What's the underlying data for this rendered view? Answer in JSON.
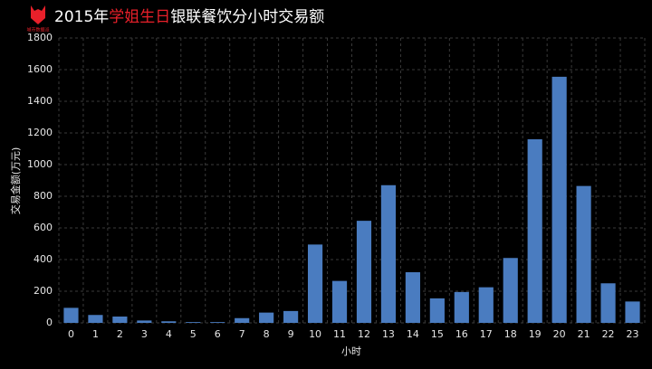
{
  "chart_data": {
    "type": "bar",
    "logo_text": "城市数据派",
    "title_parts": [
      "2015年",
      "学姐生日",
      "银联餐饮分小时交易额"
    ],
    "title_colors": [
      "#ffffff",
      "#e8202a",
      "#ffffff"
    ],
    "x_label": "小时",
    "y_label": "交易金额(万元)",
    "categories": [
      "0",
      "1",
      "2",
      "3",
      "4",
      "5",
      "6",
      "7",
      "8",
      "9",
      "10",
      "11",
      "12",
      "13",
      "14",
      "15",
      "16",
      "17",
      "18",
      "19",
      "20",
      "21",
      "22",
      "23"
    ],
    "values": [
      95,
      50,
      40,
      15,
      10,
      5,
      5,
      30,
      65,
      75,
      495,
      265,
      645,
      870,
      320,
      155,
      195,
      225,
      410,
      1160,
      1555,
      865,
      250,
      135
    ],
    "color": "#4a7cc0",
    "ylim": [
      0,
      1800
    ],
    "yticks": [
      0,
      200,
      400,
      600,
      800,
      1000,
      1200,
      1400,
      1600,
      1800
    ],
    "grid": true
  }
}
